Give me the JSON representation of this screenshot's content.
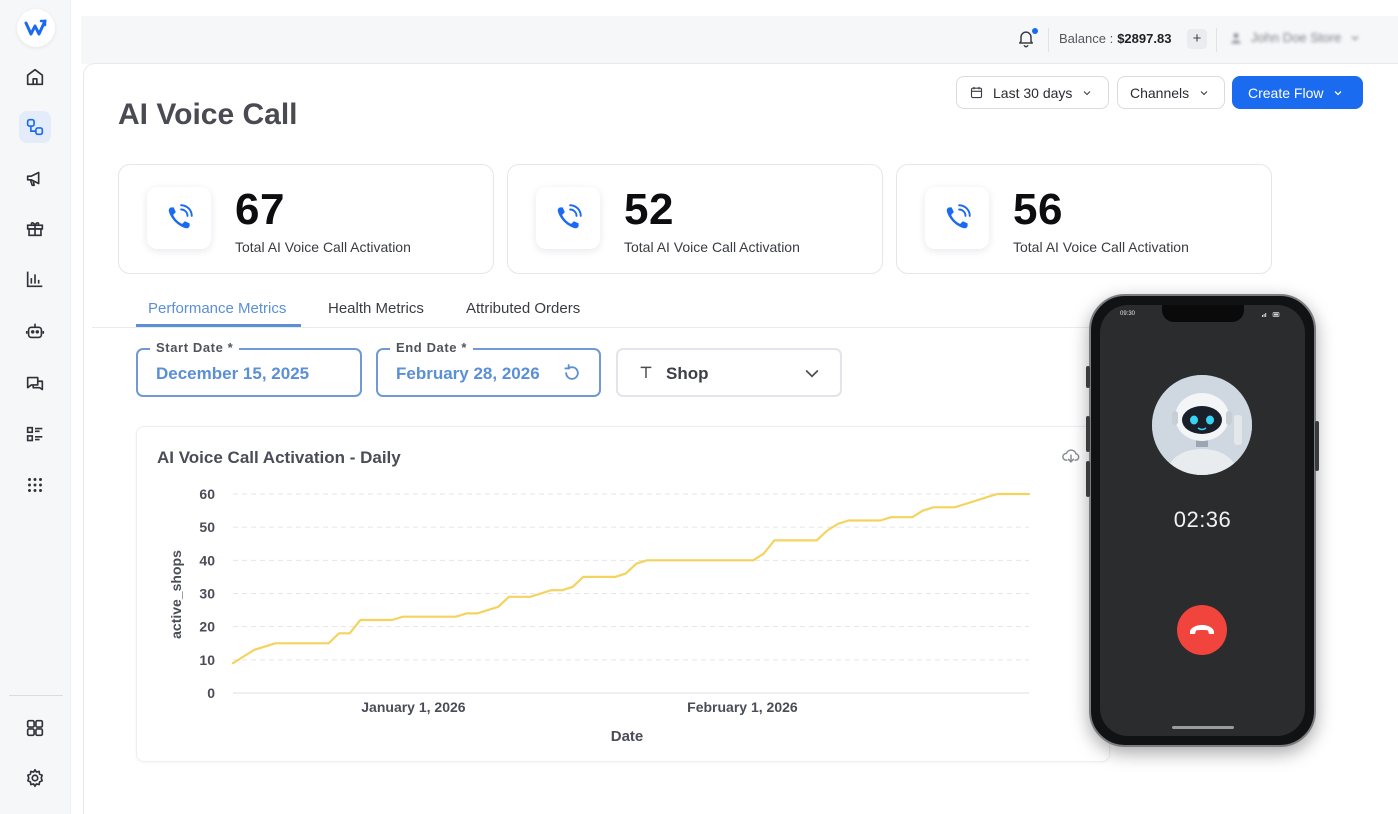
{
  "topbar": {
    "balance_label": "Balance :",
    "balance_value": "$2897.83",
    "add_label": "+",
    "store_name": "John Doe Store"
  },
  "page": {
    "title": "AI Voice Call"
  },
  "header_actions": {
    "date_range": "Last 30 days",
    "channels": "Channels",
    "create_flow": "Create Flow"
  },
  "stats": [
    {
      "value": "67",
      "label": "Total AI Voice Call Activation"
    },
    {
      "value": "52",
      "label": "Total AI Voice Call Activation"
    },
    {
      "value": "56",
      "label": "Total AI Voice Call Activation"
    }
  ],
  "tabs": [
    {
      "label": "Performance Metrics",
      "active": true
    },
    {
      "label": "Health Metrics",
      "active": false
    },
    {
      "label": "Attributed Orders",
      "active": false
    }
  ],
  "filters": {
    "start_date_label": "Start Date *",
    "start_date_value": "December 15, 2025",
    "end_date_label": "End Date *",
    "end_date_value": "February 28, 2026",
    "group_value": "Shop"
  },
  "phone": {
    "status_time": "09:30",
    "call_timer": "02:36"
  },
  "colors": {
    "accent": "#1a6bf0",
    "tab_active": "#5b8fd6",
    "line": "#f4d35e",
    "hangup": "#f0443c"
  },
  "chart_data": {
    "type": "line",
    "title": "AI Voice Call Activation - Daily",
    "xlabel": "Date",
    "ylabel": "active_shops",
    "ylim": [
      0,
      60
    ],
    "yticks": [
      0,
      10,
      20,
      30,
      40,
      50,
      60
    ],
    "xlim": [
      "2025-12-15",
      "2026-02-28"
    ],
    "xticks": [
      {
        "date": "2026-01-01",
        "label": "January 1, 2026"
      },
      {
        "date": "2026-02-01",
        "label": "February 1, 2026"
      }
    ],
    "grid": "horizontal-dashed",
    "series": [
      {
        "values": [
          {
            "x": "2025-12-15",
            "y": 9
          },
          {
            "x": "2025-12-16",
            "y": 11
          },
          {
            "x": "2025-12-17",
            "y": 13
          },
          {
            "x": "2025-12-18",
            "y": 14
          },
          {
            "x": "2025-12-19",
            "y": 15
          },
          {
            "x": "2025-12-22",
            "y": 15
          },
          {
            "x": "2025-12-24",
            "y": 15
          },
          {
            "x": "2025-12-25",
            "y": 18
          },
          {
            "x": "2025-12-26",
            "y": 18
          },
          {
            "x": "2025-12-27",
            "y": 22
          },
          {
            "x": "2025-12-30",
            "y": 22
          },
          {
            "x": "2025-12-31",
            "y": 23
          },
          {
            "x": "2026-01-05",
            "y": 23
          },
          {
            "x": "2026-01-06",
            "y": 24
          },
          {
            "x": "2026-01-07",
            "y": 24
          },
          {
            "x": "2026-01-09",
            "y": 26
          },
          {
            "x": "2026-01-10",
            "y": 29
          },
          {
            "x": "2026-01-11",
            "y": 29
          },
          {
            "x": "2026-01-12",
            "y": 29
          },
          {
            "x": "2026-01-14",
            "y": 31
          },
          {
            "x": "2026-01-15",
            "y": 31
          },
          {
            "x": "2026-01-16",
            "y": 32
          },
          {
            "x": "2026-01-17",
            "y": 35
          },
          {
            "x": "2026-01-20",
            "y": 35
          },
          {
            "x": "2026-01-21",
            "y": 36
          },
          {
            "x": "2026-01-22",
            "y": 39
          },
          {
            "x": "2026-01-23",
            "y": 40
          },
          {
            "x": "2026-01-29",
            "y": 40
          },
          {
            "x": "2026-02-02",
            "y": 40
          },
          {
            "x": "2026-02-03",
            "y": 42
          },
          {
            "x": "2026-02-04",
            "y": 46
          },
          {
            "x": "2026-02-08",
            "y": 46
          },
          {
            "x": "2026-02-09",
            "y": 49
          },
          {
            "x": "2026-02-10",
            "y": 51
          },
          {
            "x": "2026-02-11",
            "y": 52
          },
          {
            "x": "2026-02-14",
            "y": 52
          },
          {
            "x": "2026-02-15",
            "y": 53
          },
          {
            "x": "2026-02-17",
            "y": 53
          },
          {
            "x": "2026-02-18",
            "y": 55
          },
          {
            "x": "2026-02-19",
            "y": 56
          },
          {
            "x": "2026-02-21",
            "y": 56
          },
          {
            "x": "2026-02-22",
            "y": 57
          },
          {
            "x": "2026-02-24",
            "y": 59
          },
          {
            "x": "2026-02-25",
            "y": 60
          },
          {
            "x": "2026-02-28",
            "y": 60
          }
        ]
      }
    ]
  }
}
